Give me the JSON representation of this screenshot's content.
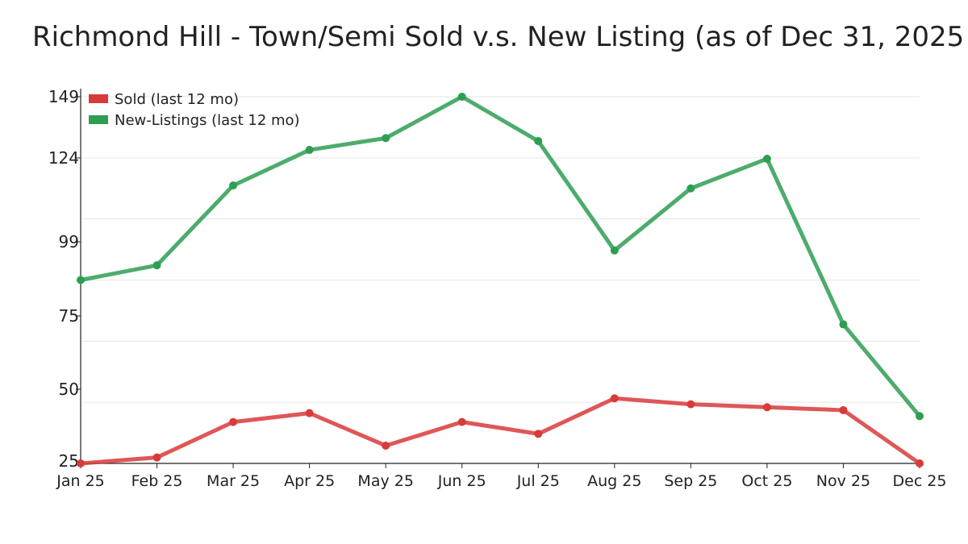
{
  "chart_data": {
    "type": "line",
    "title": "Richmond Hill - Town/Semi Sold v.s. New Listing (as of Dec 31, 2025",
    "xlabel": "",
    "ylabel": "",
    "categories": [
      "Jan 25",
      "Feb 25",
      "Mar 25",
      "Apr 25",
      "May 25",
      "Jun 25",
      "Jul 25",
      "Aug 25",
      "Sep 25",
      "Oct 25",
      "Nov 25",
      "Dec 25"
    ],
    "yticks": [
      149,
      124,
      99,
      75,
      50,
      25
    ],
    "ylim": [
      25,
      149
    ],
    "grid": true,
    "legend_position": "top-left",
    "series": [
      {
        "name": "Sold (last 12 mo)",
        "color": "#d93a3a",
        "values": [
          25,
          27,
          39,
          42,
          31,
          39,
          35,
          47,
          45,
          44,
          43,
          25
        ]
      },
      {
        "name": "New-Listings (last 12 mo)",
        "color": "#2e9e52",
        "values": [
          87,
          92,
          119,
          131,
          135,
          149,
          134,
          97,
          118,
          128,
          72,
          41
        ]
      }
    ]
  }
}
